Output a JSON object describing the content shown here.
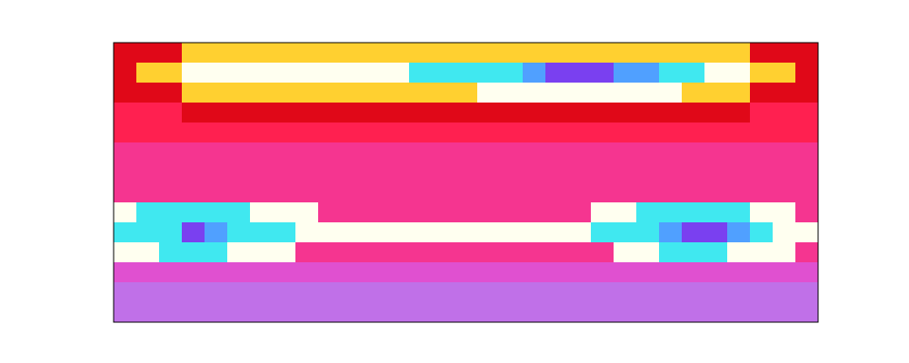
{
  "chart_data": {
    "type": "heatmap",
    "tick_labels": false,
    "zlim": [
      0,
      9
    ],
    "cells": [
      [
        4,
        4,
        4,
        5,
        5,
        5,
        5,
        5,
        5,
        5,
        5,
        5,
        5,
        5,
        5,
        5,
        5,
        5,
        5,
        5,
        5,
        5,
        5,
        5,
        5,
        5,
        5,
        5,
        4,
        4,
        4
      ],
      [
        4,
        5,
        5,
        6,
        6,
        6,
        6,
        6,
        6,
        6,
        6,
        6,
        6,
        7,
        7,
        7,
        7,
        7,
        8,
        9,
        9,
        9,
        8,
        8,
        7,
        7,
        6,
        6,
        5,
        5,
        4
      ],
      [
        4,
        4,
        4,
        5,
        5,
        5,
        5,
        5,
        5,
        5,
        5,
        5,
        5,
        5,
        5,
        5,
        6,
        6,
        6,
        6,
        6,
        6,
        6,
        6,
        6,
        5,
        5,
        5,
        4,
        4,
        4
      ],
      [
        3,
        3,
        3,
        4,
        4,
        4,
        4,
        4,
        4,
        4,
        4,
        4,
        4,
        4,
        4,
        4,
        4,
        4,
        4,
        4,
        4,
        4,
        4,
        4,
        4,
        4,
        4,
        4,
        3,
        3,
        3
      ],
      [
        3,
        3,
        3,
        3,
        3,
        3,
        3,
        3,
        3,
        3,
        3,
        3,
        3,
        3,
        3,
        3,
        3,
        3,
        3,
        3,
        3,
        3,
        3,
        3,
        3,
        3,
        3,
        3,
        3,
        3,
        3
      ],
      [
        2,
        2,
        2,
        2,
        2,
        2,
        2,
        2,
        2,
        2,
        2,
        2,
        2,
        2,
        2,
        2,
        2,
        2,
        2,
        2,
        2,
        2,
        2,
        2,
        2,
        2,
        2,
        2,
        2,
        2,
        2
      ],
      [
        2,
        2,
        2,
        2,
        2,
        2,
        2,
        2,
        2,
        2,
        2,
        2,
        2,
        2,
        2,
        2,
        2,
        2,
        2,
        2,
        2,
        2,
        2,
        2,
        2,
        2,
        2,
        2,
        2,
        2,
        2
      ],
      [
        2,
        2,
        2,
        2,
        2,
        2,
        2,
        2,
        2,
        2,
        2,
        2,
        2,
        2,
        2,
        2,
        2,
        2,
        2,
        2,
        2,
        2,
        2,
        2,
        2,
        2,
        2,
        2,
        2,
        2,
        2
      ],
      [
        6,
        7,
        7,
        7,
        7,
        7,
        6,
        6,
        6,
        2,
        2,
        2,
        2,
        2,
        2,
        2,
        2,
        2,
        2,
        2,
        2,
        6,
        6,
        7,
        7,
        7,
        7,
        7,
        6,
        6,
        2
      ],
      [
        7,
        7,
        7,
        9,
        8,
        7,
        7,
        7,
        6,
        6,
        6,
        6,
        6,
        6,
        6,
        6,
        6,
        6,
        6,
        6,
        6,
        7,
        7,
        7,
        8,
        9,
        9,
        8,
        7,
        6,
        6
      ],
      [
        6,
        6,
        7,
        7,
        7,
        6,
        6,
        6,
        2,
        2,
        2,
        2,
        2,
        2,
        2,
        2,
        2,
        2,
        2,
        2,
        2,
        2,
        6,
        6,
        7,
        7,
        7,
        6,
        6,
        6,
        2
      ],
      [
        1,
        1,
        1,
        1,
        1,
        1,
        1,
        1,
        1,
        1,
        1,
        1,
        1,
        1,
        1,
        1,
        1,
        1,
        1,
        1,
        1,
        1,
        1,
        1,
        1,
        1,
        1,
        1,
        1,
        1,
        1
      ],
      [
        0,
        0,
        0,
        0,
        0,
        0,
        0,
        0,
        0,
        0,
        0,
        0,
        0,
        0,
        0,
        0,
        0,
        0,
        0,
        0,
        0,
        0,
        0,
        0,
        0,
        0,
        0,
        0,
        0,
        0,
        0
      ],
      [
        0,
        0,
        0,
        0,
        0,
        0,
        0,
        0,
        0,
        0,
        0,
        0,
        0,
        0,
        0,
        0,
        0,
        0,
        0,
        0,
        0,
        0,
        0,
        0,
        0,
        0,
        0,
        0,
        0,
        0,
        0
      ]
    ]
  }
}
